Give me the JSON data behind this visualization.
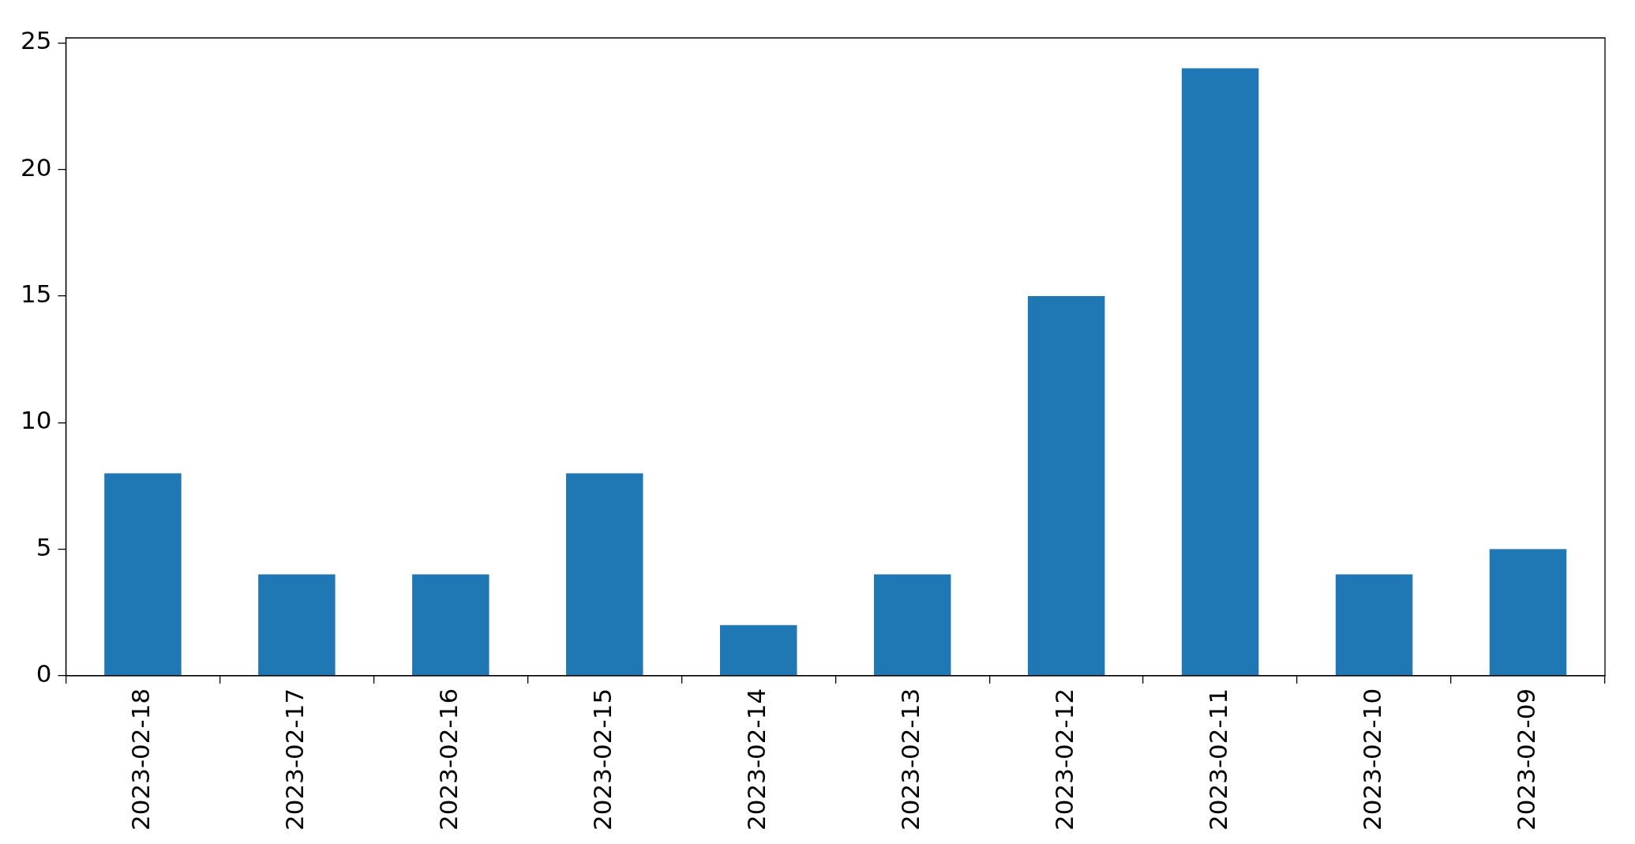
{
  "chart_data": {
    "type": "bar",
    "categories": [
      "2023-02-18",
      "2023-02-17",
      "2023-02-16",
      "2023-02-15",
      "2023-02-14",
      "2023-02-13",
      "2023-02-12",
      "2023-02-11",
      "2023-02-10",
      "2023-02-09"
    ],
    "values": [
      8,
      4,
      4,
      8,
      2,
      4,
      15,
      24,
      4,
      5
    ],
    "color": "#1f77b4",
    "ylim": [
      0,
      25.2
    ],
    "yticks": [
      0,
      5,
      10,
      15,
      20,
      25
    ],
    "grid": false,
    "legend": false
  }
}
